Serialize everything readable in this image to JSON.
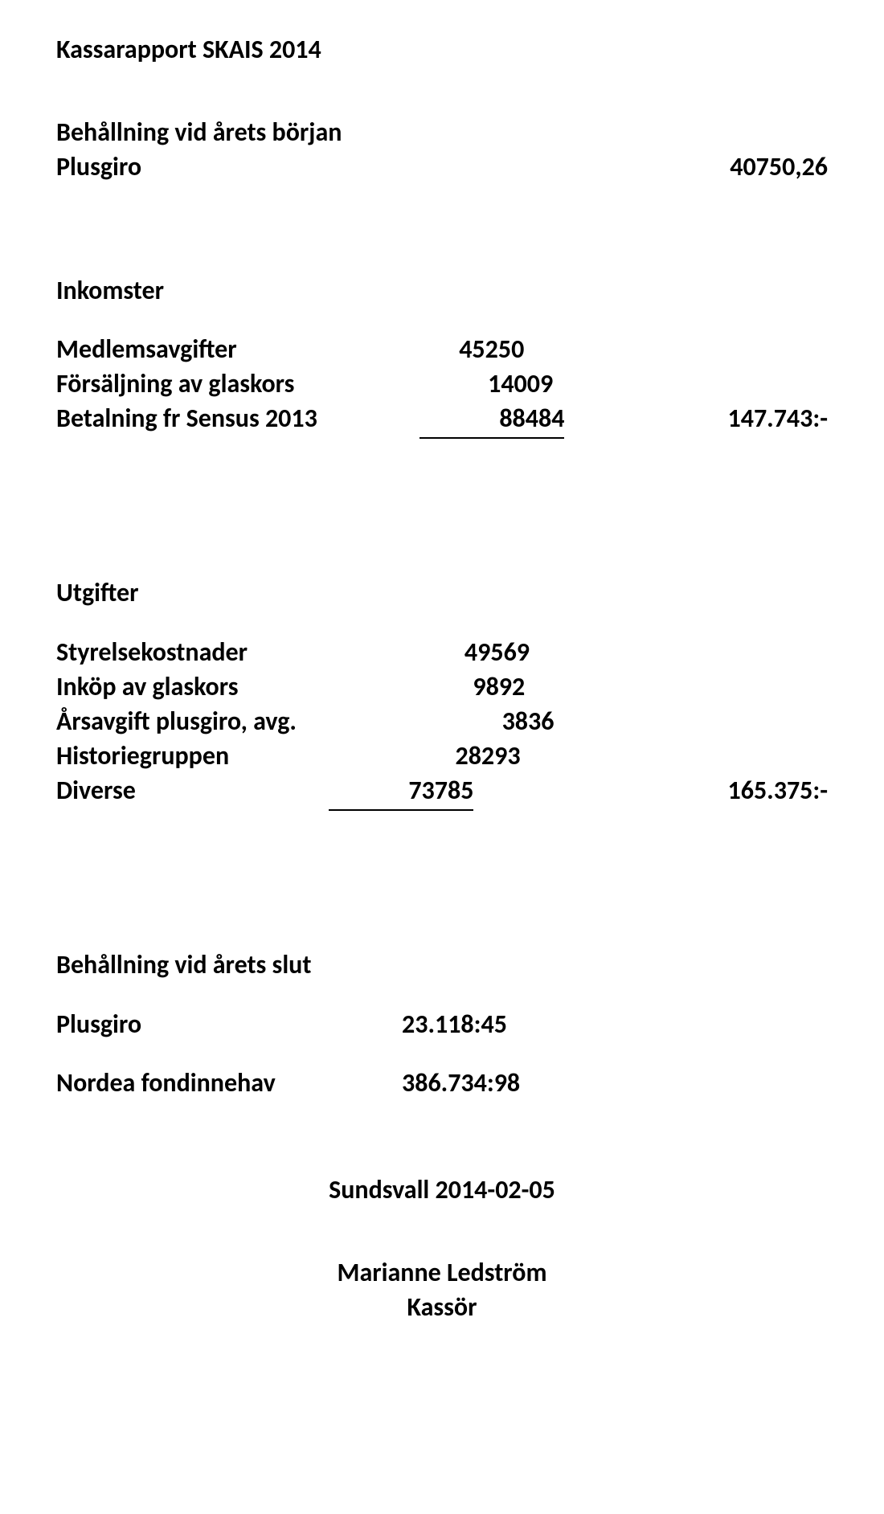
{
  "title": "Kassarapport SKAIS 2014",
  "opening": {
    "heading": "Behållning vid årets början",
    "row": {
      "label": "Plusgiro",
      "value": "40750,26"
    }
  },
  "income": {
    "heading": "Inkomster",
    "rows": [
      {
        "label": "Medlemsavgifter",
        "value": "45250"
      },
      {
        "label": "Försäljning av glaskors",
        "value": "14009"
      },
      {
        "label": "Betalning fr Sensus 2013",
        "value": "88484"
      }
    ],
    "total": "147.743:-"
  },
  "expenses": {
    "heading": "Utgifter",
    "rows": [
      {
        "label": "Styrelsekostnader",
        "value": "49569"
      },
      {
        "label": "Inköp av glaskors",
        "value": "9892"
      },
      {
        "label": "Årsavgift plusgiro, avg.",
        "value": "3836"
      },
      {
        "label": "Historiegruppen",
        "value": "28293"
      },
      {
        "label": "Diverse",
        "value": "73785"
      }
    ],
    "total": "165.375:-"
  },
  "closing": {
    "heading": "Behållning vid årets slut",
    "rows": [
      {
        "label": "Plusgiro",
        "value": "23.118:45"
      },
      {
        "label": "Nordea fondinnehav",
        "value": "386.734:98"
      }
    ]
  },
  "footer": {
    "place_date": "Sundsvall 2014-02-05",
    "name": "Marianne Ledström",
    "role": "Kassör"
  }
}
